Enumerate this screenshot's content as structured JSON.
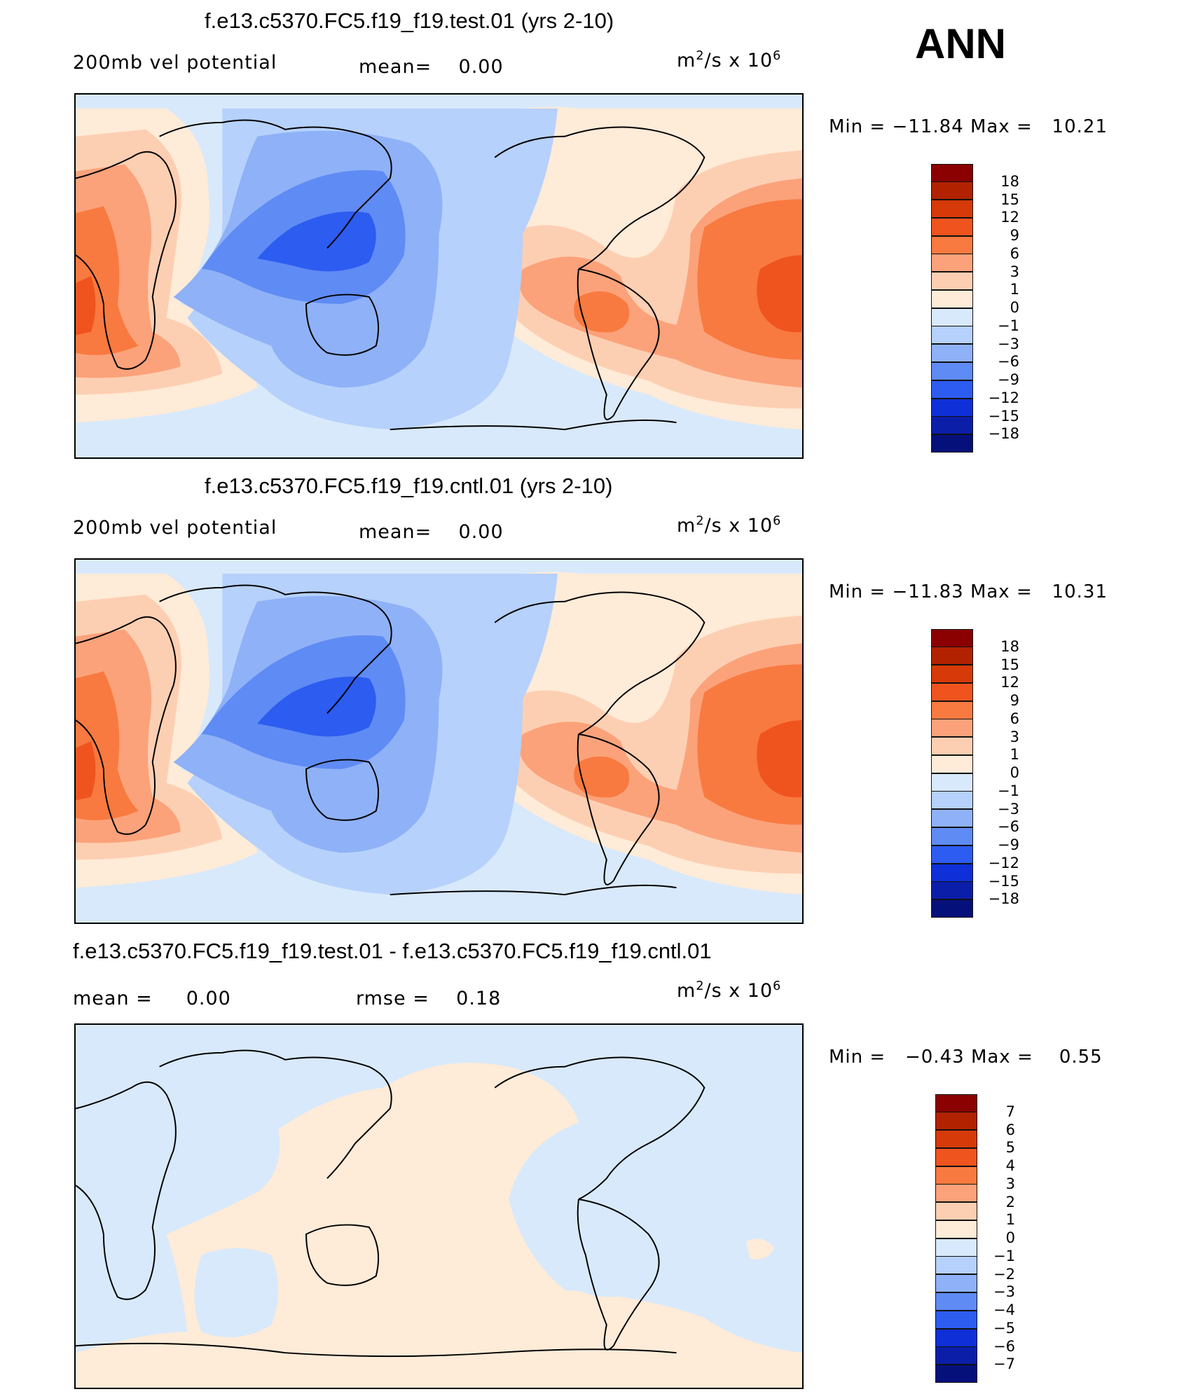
{
  "season": "ANN",
  "panels": [
    {
      "title": "f.e13.c5370.FC5.f19_f19.test.01 (yrs 2-10)",
      "left_label": "200mb  vel  potential",
      "center_label": "mean=",
      "center_value": "0.00",
      "units_base": "m",
      "units_exp1": "2",
      "units_mid": "/s  x  10",
      "units_exp2": "6",
      "min_label": "Min  =",
      "min_value": "−11.84",
      "max_label": "Max  =",
      "max_value": "10.21",
      "colorbar_levels": [
        "18",
        "15",
        "12",
        "9",
        "6",
        "3",
        "1",
        "0",
        "−1",
        "−3",
        "−6",
        "−9",
        "−12",
        "−15",
        "−18"
      ]
    },
    {
      "title": "f.e13.c5370.FC5.f19_f19.cntl.01 (yrs 2-10)",
      "left_label": "200mb  vel  potential",
      "center_label": "mean=",
      "center_value": "0.00",
      "units_base": "m",
      "units_exp1": "2",
      "units_mid": "/s  x  10",
      "units_exp2": "6",
      "min_label": "Min  =",
      "min_value": "−11.83",
      "max_label": "Max  =",
      "max_value": "10.31",
      "colorbar_levels": [
        "18",
        "15",
        "12",
        "9",
        "6",
        "3",
        "1",
        "0",
        "−1",
        "−3",
        "−6",
        "−9",
        "−12",
        "−15",
        "−18"
      ]
    },
    {
      "title": "f.e13.c5370.FC5.f19_f19.test.01 - f.e13.c5370.FC5.f19_f19.cntl.01",
      "left_label": "mean  =",
      "left_value": "0.00",
      "center_label": "rmse  =",
      "center_value": "0.18",
      "units_base": "m",
      "units_exp1": "2",
      "units_mid": "/s  x  10",
      "units_exp2": "6",
      "min_label": "Min  =",
      "min_value": "−0.43",
      "max_label": "Max  =",
      "max_value": "0.55",
      "colorbar_levels": [
        "7",
        "6",
        "5",
        "4",
        "3",
        "2",
        "1",
        "0",
        "−1",
        "−2",
        "−3",
        "−4",
        "−5",
        "−6",
        "−7"
      ]
    }
  ],
  "colorbar_colors": [
    "#8b0000",
    "#b22200",
    "#d63a08",
    "#f0541e",
    "#f87a40",
    "#fba27a",
    "#fdcfb2",
    "#feebd8",
    "#d8e9fb",
    "#b6d1fb",
    "#8fb1f7",
    "#5f8bf4",
    "#2d5cf0",
    "#0f30d8",
    "#0b1ea8",
    "#06107a"
  ]
}
